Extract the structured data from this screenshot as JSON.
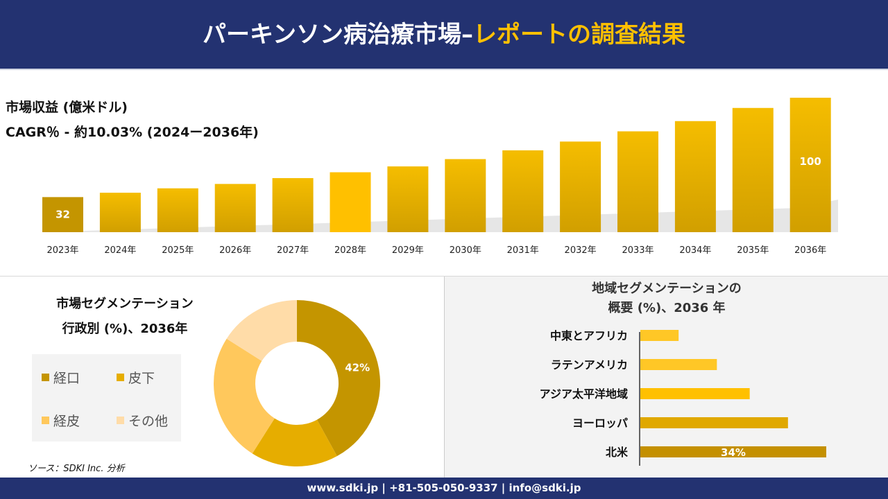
{
  "header": {
    "title_main": "パーキンソン病治療市場–",
    "title_accent": "レポートの調査結果"
  },
  "revenue": {
    "label": "市場収益 (億米ドル)",
    "cagr": "CAGR％ - 約10.03% (2024ー2036年)"
  },
  "colors": {
    "header_bg": "#233271",
    "accent": "#ffc000",
    "bar": "#d9a300",
    "bar_highlight": "#ffc000"
  },
  "chart_data": [
    {
      "type": "bar",
      "title": "",
      "xlabel": "",
      "ylabel": "",
      "categories": [
        "2023年",
        "2024年",
        "2025年",
        "2026年",
        "2027年",
        "2028年",
        "2029年",
        "2030年",
        "2031年",
        "2032年",
        "2033年",
        "2034年",
        "2035年",
        "2036年"
      ],
      "values": [
        32,
        35,
        38,
        41,
        45,
        49,
        53,
        58,
        64,
        70,
        77,
        84,
        93,
        100
      ],
      "data_labels": {
        "0": "32",
        "13": "100"
      },
      "ylim": [
        8,
        100
      ],
      "grid": false
    },
    {
      "type": "pie",
      "title": "市場セグメンテーション 行政別 (%)、2036年",
      "categories": [
        "経口",
        "皮下",
        "経皮",
        "その他"
      ],
      "values": [
        42,
        17,
        25,
        16
      ],
      "colors": [
        "#c49500",
        "#e6ad00",
        "#ffc85c",
        "#ffdca8"
      ],
      "data_labels": {
        "0": "42%"
      },
      "legend": "left"
    },
    {
      "type": "bar",
      "orientation": "horizontal",
      "title": "地域セグメンテーションの 概要 (%)、2036 年",
      "categories": [
        "中東とアフリカ",
        "ラテンアメリカ",
        "アジア太平洋地域",
        "ヨーロッパ",
        "北米"
      ],
      "values": [
        7,
        14,
        20,
        27,
        34
      ],
      "colors": [
        "#ffc726",
        "#ffc726",
        "#ffc000",
        "#e0a800",
        "#c49000"
      ],
      "data_labels": {
        "4": "34%"
      }
    }
  ],
  "segment": {
    "title1": "市場セグメンテーション",
    "title2": "行政別 (%)、2036年"
  },
  "region": {
    "title1": "地域セグメンテーションの",
    "title2": "概要 (%)、2036 年"
  },
  "source": "ソース：SDKI Inc. 分析",
  "footer": "www.sdki.jp | +81-505-050-9337 | info@sdki.jp"
}
